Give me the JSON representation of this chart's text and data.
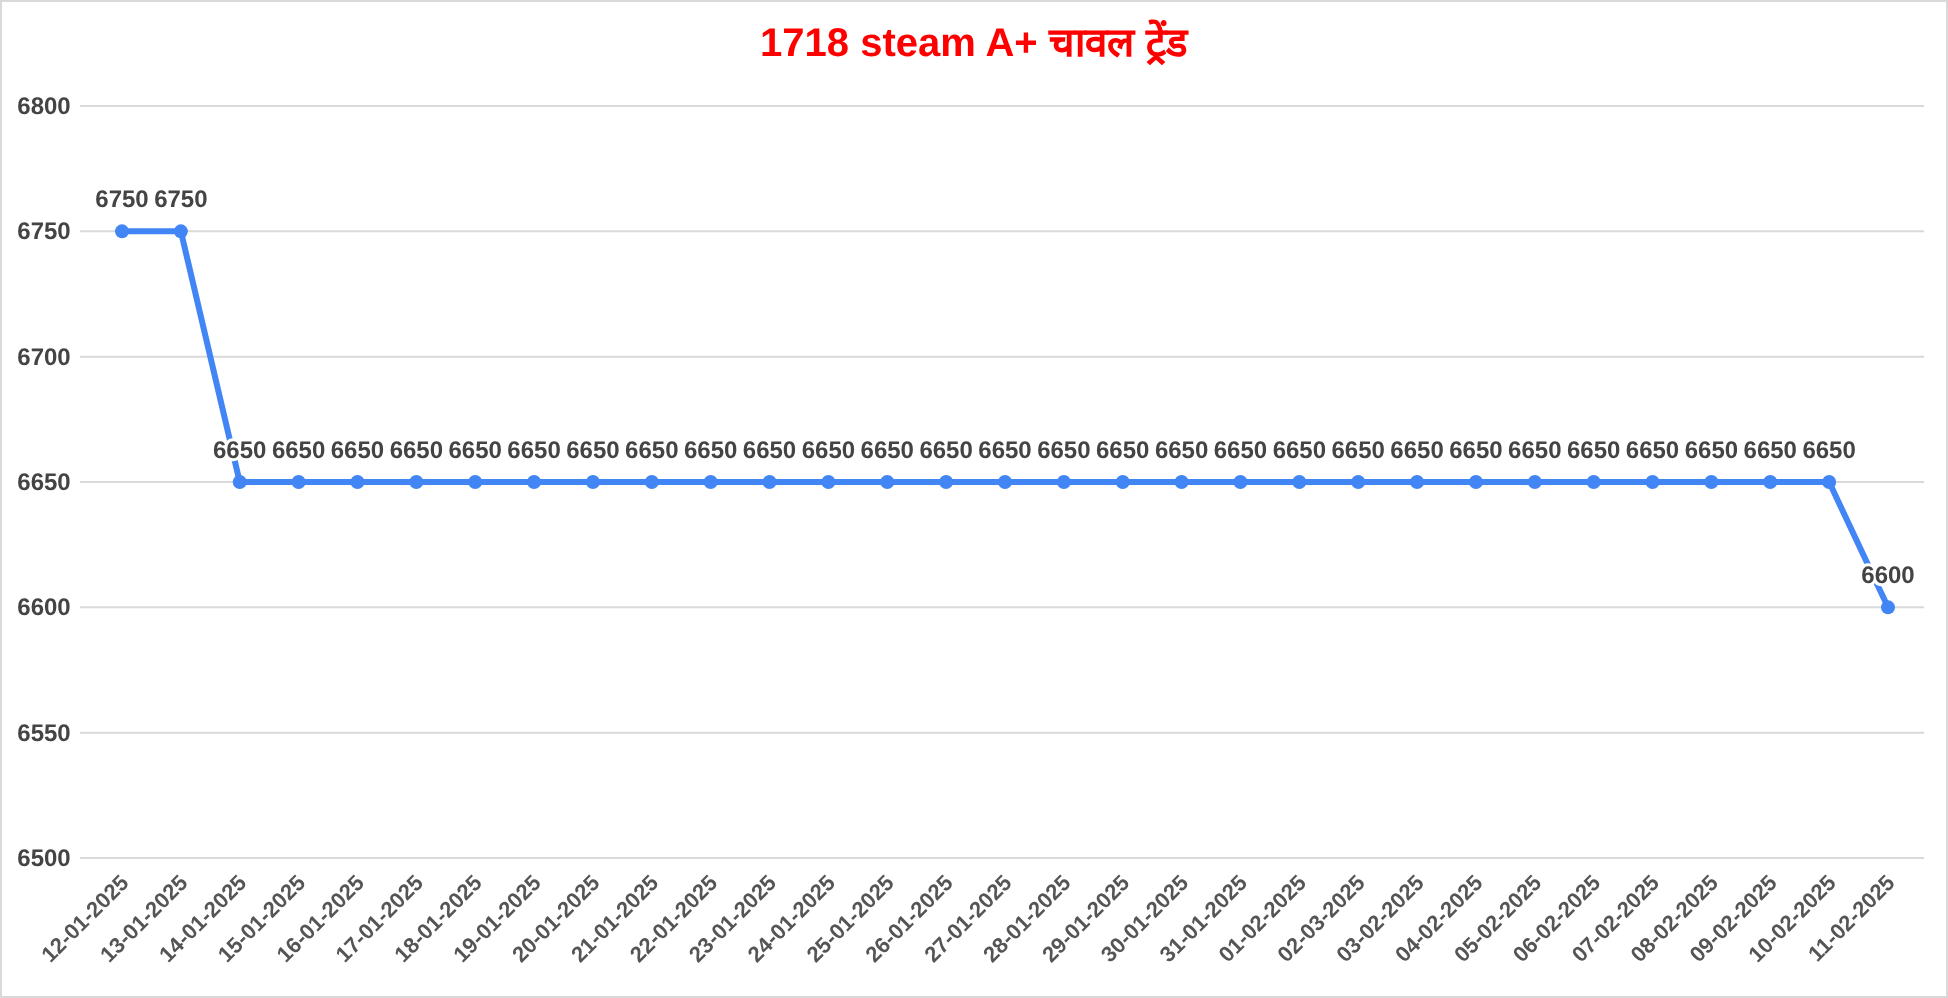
{
  "chart_data": {
    "type": "line",
    "title": "1718 steam A+ चावल ट्रेंड",
    "categories": [
      "12-01-2025",
      "13-01-2025",
      "14-01-2025",
      "15-01-2025",
      "16-01-2025",
      "17-01-2025",
      "18-01-2025",
      "19-01-2025",
      "20-01-2025",
      "21-01-2025",
      "22-01-2025",
      "23-01-2025",
      "24-01-2025",
      "25-01-2025",
      "26-01-2025",
      "27-01-2025",
      "28-01-2025",
      "29-01-2025",
      "30-01-2025",
      "31-01-2025",
      "01-02-2025",
      "02-03-2025",
      "03-02-2025",
      "04-02-2025",
      "05-02-2025",
      "06-02-2025",
      "07-02-2025",
      "08-02-2025",
      "09-02-2025",
      "10-02-2025",
      "11-02-2025"
    ],
    "series": [
      {
        "color": "#4285f4",
        "values": [
          6750,
          6750,
          6650,
          6650,
          6650,
          6650,
          6650,
          6650,
          6650,
          6650,
          6650,
          6650,
          6650,
          6650,
          6650,
          6650,
          6650,
          6650,
          6650,
          6650,
          6650,
          6650,
          6650,
          6650,
          6650,
          6650,
          6650,
          6650,
          6650,
          6650,
          6600
        ]
      }
    ],
    "ylim": [
      6500,
      6800
    ],
    "yticks": [
      6500,
      6550,
      6600,
      6650,
      6700,
      6750,
      6800
    ],
    "grid": "y",
    "marker": "circle",
    "line_style": "solid",
    "data_labels": true
  }
}
